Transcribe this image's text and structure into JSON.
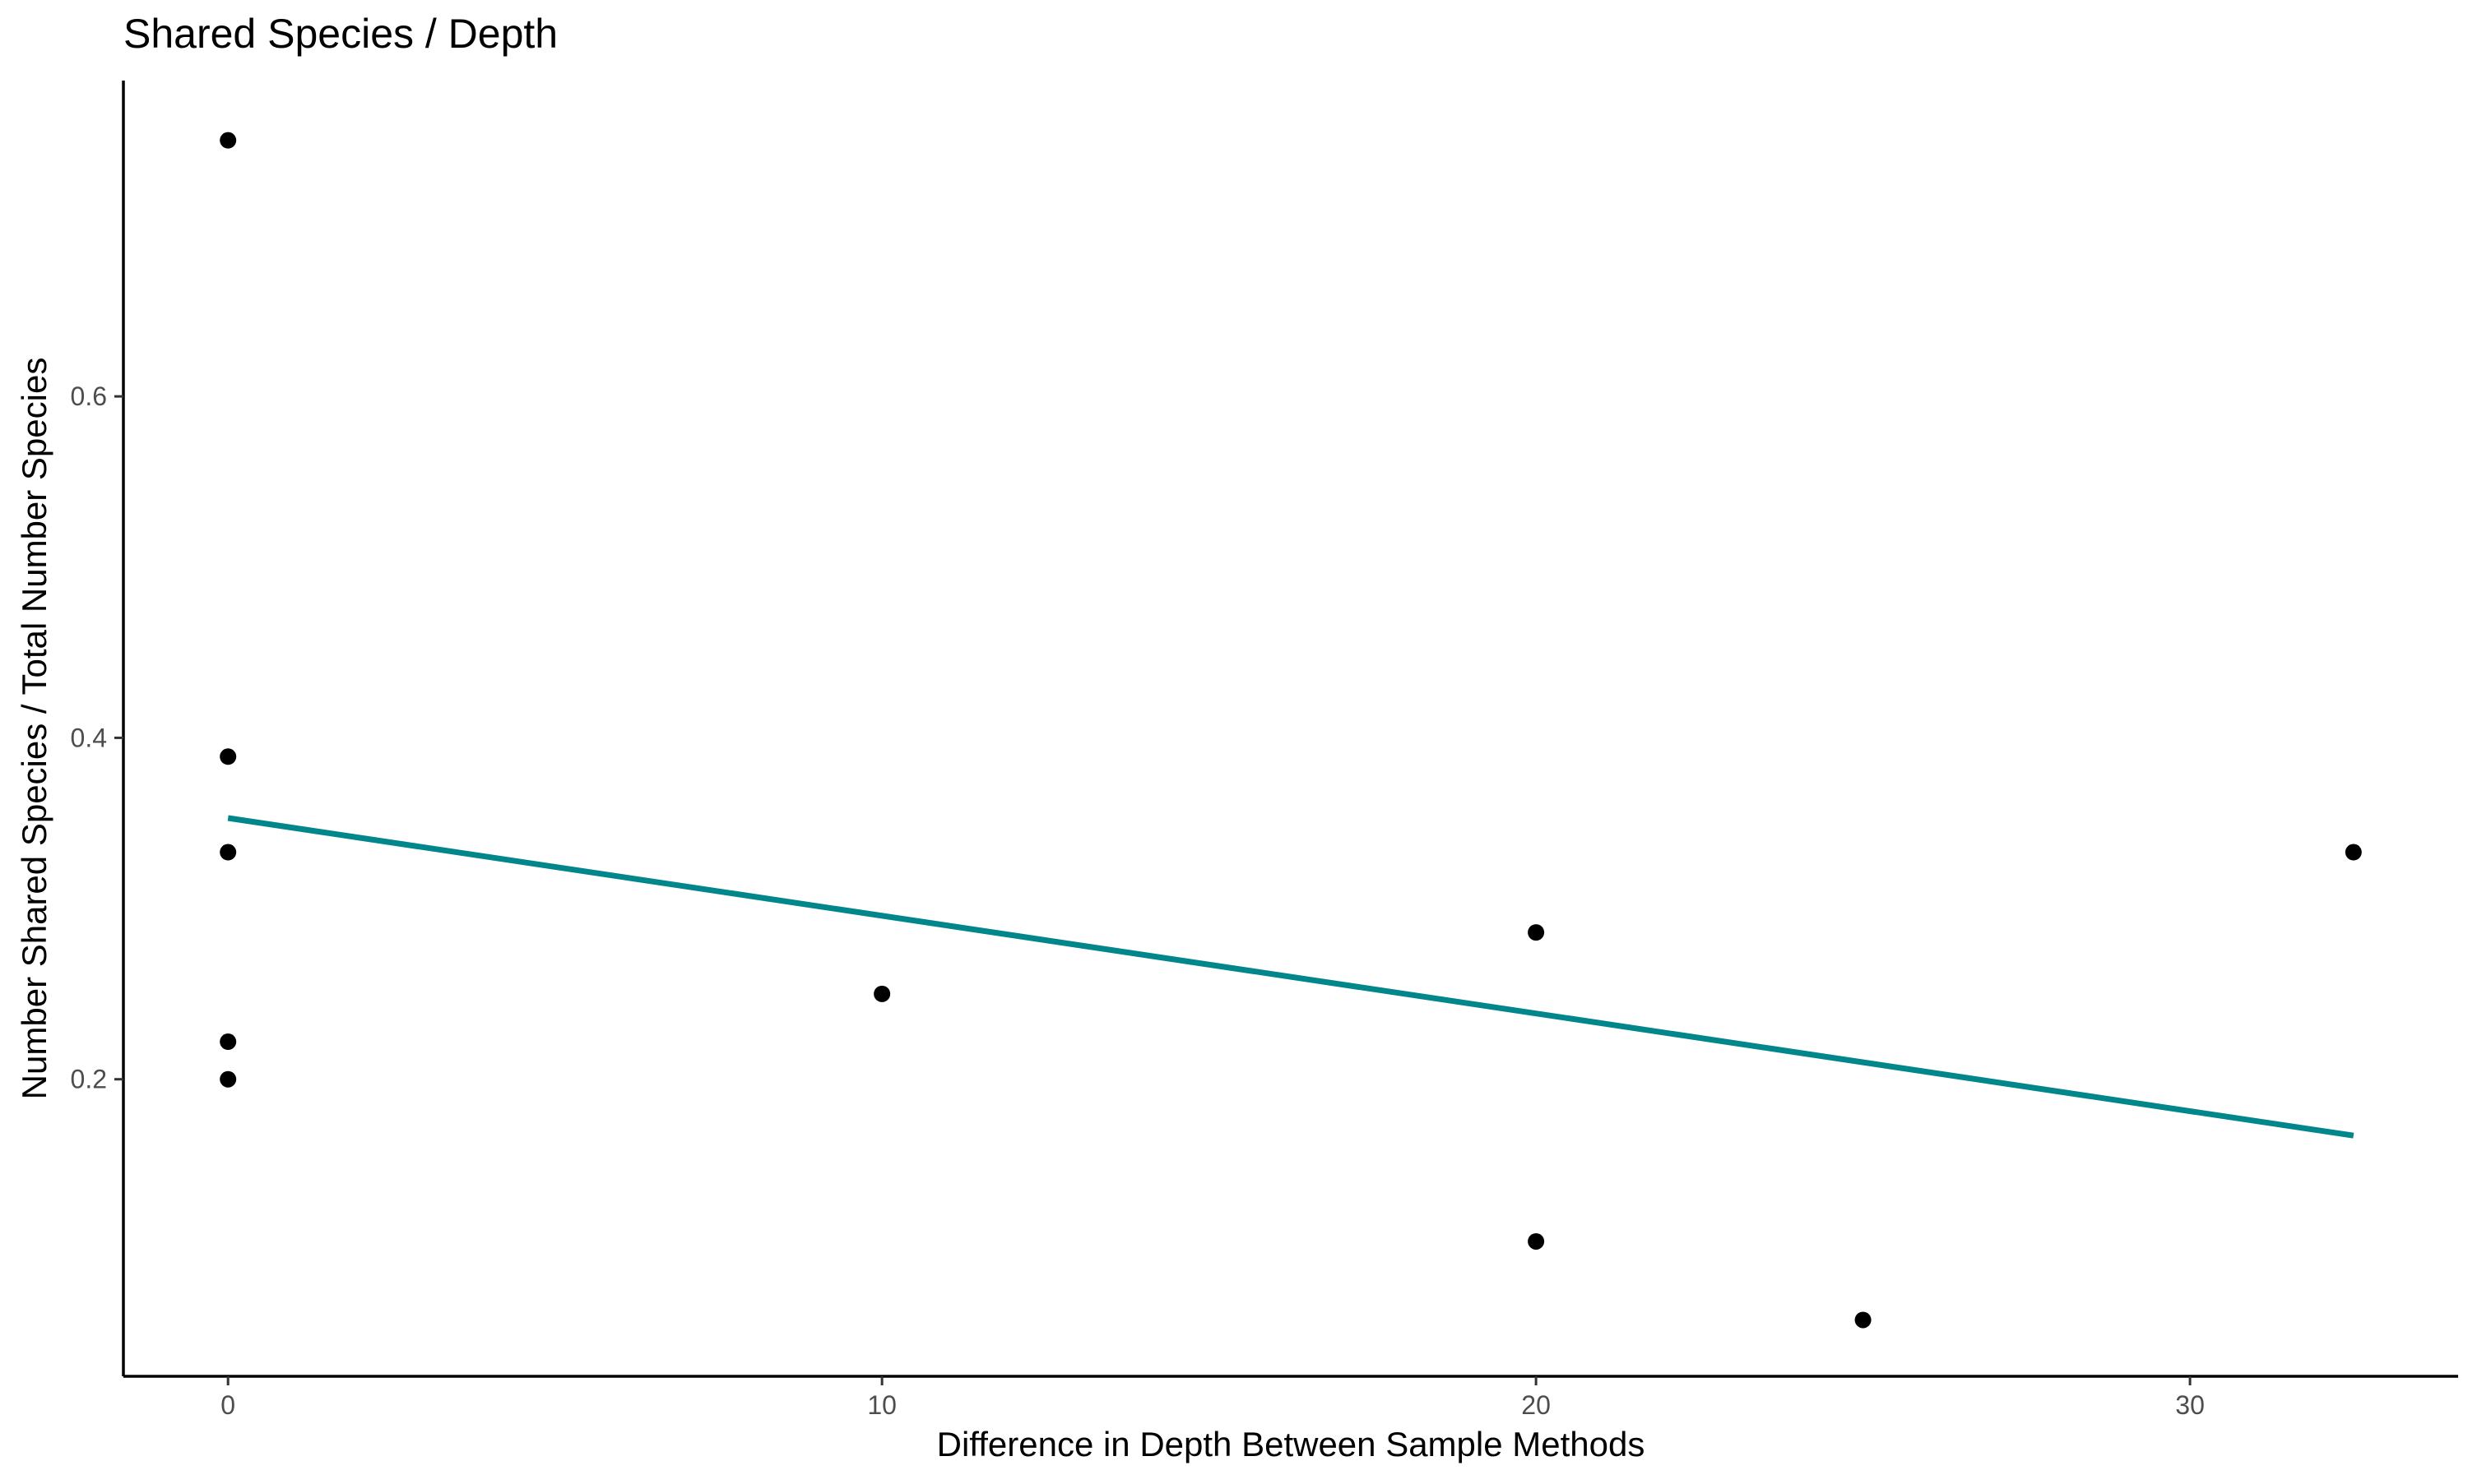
{
  "chart_data": {
    "type": "scatter",
    "title": "Shared Species / Depth",
    "xlabel": "Difference in Depth Between Sample Methods",
    "ylabel": "Number Shared Species / Total Number Species",
    "xlim": [
      -1.6,
      34.1
    ],
    "ylim": [
      0.026,
      0.785
    ],
    "x_ticks": [
      0,
      10,
      20,
      30
    ],
    "y_ticks": [
      0.2,
      0.4,
      0.6
    ],
    "x_tick_labels": [
      "0",
      "10",
      "20",
      "30"
    ],
    "y_tick_labels": [
      "0.2",
      "0.4",
      "0.6"
    ],
    "grid": false,
    "legend": "none",
    "points": [
      {
        "x": 0,
        "y": 0.75
      },
      {
        "x": 0,
        "y": 0.389
      },
      {
        "x": 0,
        "y": 0.333
      },
      {
        "x": 0,
        "y": 0.222
      },
      {
        "x": 0,
        "y": 0.2
      },
      {
        "x": 10,
        "y": 0.25
      },
      {
        "x": 20,
        "y": 0.286
      },
      {
        "x": 20,
        "y": 0.105
      },
      {
        "x": 25,
        "y": 0.059
      },
      {
        "x": 32.5,
        "y": 0.333
      }
    ],
    "trend_line": {
      "x": [
        0,
        32.5
      ],
      "y": [
        0.353,
        0.167
      ]
    },
    "colors": {
      "points": "#000000",
      "trend_line": "#00868B",
      "axis": "#000000",
      "tick_label": "#4d4d4d"
    }
  }
}
